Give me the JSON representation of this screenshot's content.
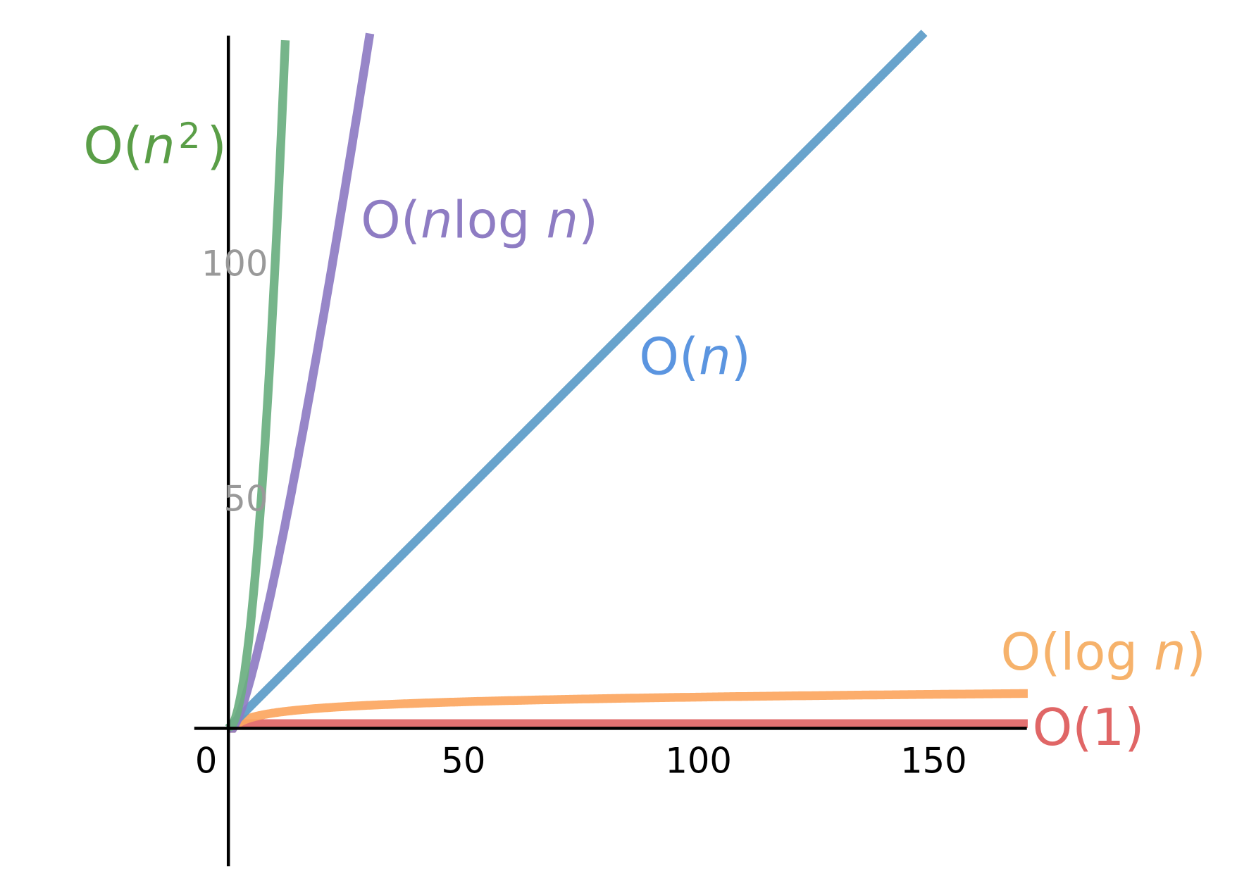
{
  "chart_data": {
    "type": "line",
    "title": "",
    "xlabel": "",
    "ylabel": "",
    "xlim": [
      -7,
      170
    ],
    "ylim": [
      -29,
      147
    ],
    "grid": false,
    "legend": "inline labels",
    "x_ticks": [
      "0",
      "50",
      "100",
      "150"
    ],
    "x_tick_values": [
      0,
      50,
      100,
      150
    ],
    "y_ticks": [
      "50",
      "100"
    ],
    "y_tick_values": [
      50,
      100
    ],
    "x_tick_color": "#000000",
    "y_tick_color": "#999999",
    "series": [
      {
        "name": "O(1)",
        "function": "1",
        "line_color": "#e06666",
        "label_color": "#e06666"
      },
      {
        "name": "O(log n)",
        "function": "log2(n)",
        "line_color": "#fca660",
        "label_color": "#f6b26b"
      },
      {
        "name": "O(n)",
        "function": "n",
        "line_color": "#5b9bc8",
        "label_color": "#5b95e0"
      },
      {
        "name": "O(nlog n)",
        "function": "n*log2(n)",
        "line_color": "#8e7cc3",
        "label_color": "#8e7cc3"
      },
      {
        "name": "O(n²)",
        "function": "n^2",
        "line_color": "#6aaf80",
        "label_color": "#5a9e47"
      }
    ]
  }
}
